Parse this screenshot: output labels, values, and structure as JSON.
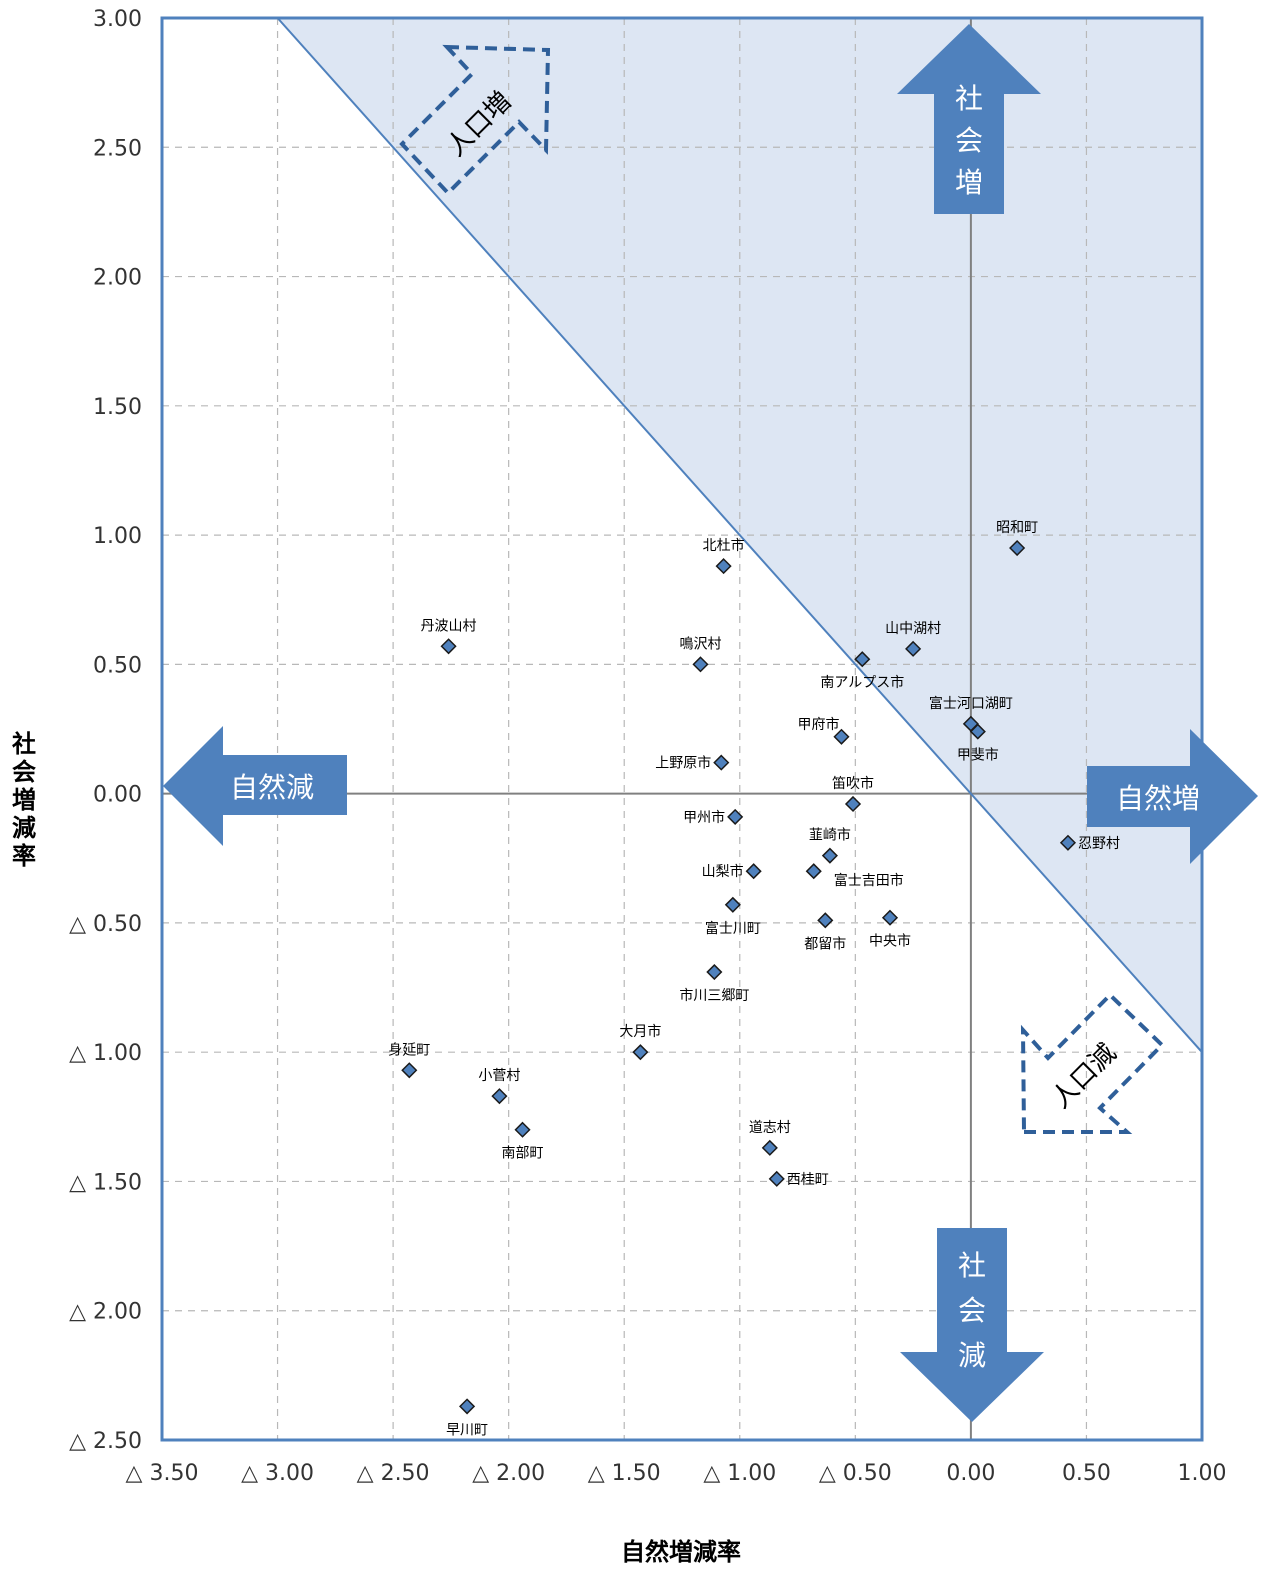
{
  "chart_data": {
    "type": "scatter",
    "xlabel": "自然増減率",
    "ylabel": "社会増減率",
    "xlim": [
      -3.5,
      1.0
    ],
    "ylim": [
      -2.5,
      3.0
    ],
    "x_ticks": [
      {
        "value": -3.5,
        "label": "△ 3.50"
      },
      {
        "value": -3.0,
        "label": "△ 3.00"
      },
      {
        "value": -2.5,
        "label": "△ 2.50"
      },
      {
        "value": -2.0,
        "label": "△ 2.00"
      },
      {
        "value": -1.5,
        "label": "△ 1.50"
      },
      {
        "value": -1.0,
        "label": "△ 1.00"
      },
      {
        "value": -0.5,
        "label": "△ 0.50"
      },
      {
        "value": 0.0,
        "label": "0.00"
      },
      {
        "value": 0.5,
        "label": "0.50"
      },
      {
        "value": 1.0,
        "label": "1.00"
      }
    ],
    "y_ticks": [
      {
        "value": 3.0,
        "label": "3.00"
      },
      {
        "value": 2.5,
        "label": "2.50"
      },
      {
        "value": 2.0,
        "label": "2.00"
      },
      {
        "value": 1.5,
        "label": "1.50"
      },
      {
        "value": 1.0,
        "label": "1.00"
      },
      {
        "value": 0.5,
        "label": "0.50"
      },
      {
        "value": 0.0,
        "label": "0.00"
      },
      {
        "value": -0.5,
        "label": "△ 0.50"
      },
      {
        "value": -1.0,
        "label": "△ 1.00"
      },
      {
        "value": -1.5,
        "label": "△ 1.50"
      },
      {
        "value": -2.0,
        "label": "△ 2.00"
      },
      {
        "value": -2.5,
        "label": "△ 2.50"
      }
    ],
    "grid": true,
    "marker_color": "#4f81bd",
    "shade_color": "#dde6f3",
    "line_color": "#4f81bd",
    "points": [
      {
        "name": "昭和町",
        "x": 0.2,
        "y": 0.95,
        "lpos": "above"
      },
      {
        "name": "北杜市",
        "x": -1.07,
        "y": 0.88,
        "lpos": "above"
      },
      {
        "name": "山中湖村",
        "x": -0.25,
        "y": 0.56,
        "lpos": "above"
      },
      {
        "name": "丹波山村",
        "x": -2.26,
        "y": 0.57,
        "lpos": "above"
      },
      {
        "name": "鳴沢村",
        "x": -1.17,
        "y": 0.5,
        "lpos": "above"
      },
      {
        "name": "南アルプス市",
        "x": -0.47,
        "y": 0.52,
        "lpos": "below"
      },
      {
        "name": "富士河口湖町",
        "x": 0.0,
        "y": 0.27,
        "lpos": "above"
      },
      {
        "name": "甲斐市",
        "x": 0.03,
        "y": 0.24,
        "lpos": "below"
      },
      {
        "name": "甲府市",
        "x": -0.56,
        "y": 0.22,
        "lpos": "above-left"
      },
      {
        "name": "上野原市",
        "x": -1.08,
        "y": 0.12,
        "lpos": "left"
      },
      {
        "name": "笛吹市",
        "x": -0.51,
        "y": -0.04,
        "lpos": "above"
      },
      {
        "name": "甲州市",
        "x": -1.02,
        "y": -0.09,
        "lpos": "left"
      },
      {
        "name": "忍野村",
        "x": 0.42,
        "y": -0.19,
        "lpos": "right"
      },
      {
        "name": "韮崎市",
        "x": -0.61,
        "y": -0.24,
        "lpos": "above"
      },
      {
        "name": "山梨市",
        "x": -0.94,
        "y": -0.3,
        "lpos": "left"
      },
      {
        "name": "富士吉田市",
        "x": -0.68,
        "y": -0.3,
        "lpos": "below-right"
      },
      {
        "name": "富士川町",
        "x": -1.03,
        "y": -0.43,
        "lpos": "below"
      },
      {
        "name": "都留市",
        "x": -0.63,
        "y": -0.49,
        "lpos": "below"
      },
      {
        "name": "中央市",
        "x": -0.35,
        "y": -0.48,
        "lpos": "below"
      },
      {
        "name": "市川三郷町",
        "x": -1.11,
        "y": -0.69,
        "lpos": "below"
      },
      {
        "name": "大月市",
        "x": -1.43,
        "y": -1.0,
        "lpos": "above"
      },
      {
        "name": "身延町",
        "x": -2.43,
        "y": -1.07,
        "lpos": "above"
      },
      {
        "name": "小菅村",
        "x": -2.04,
        "y": -1.17,
        "lpos": "above"
      },
      {
        "name": "南部町",
        "x": -1.94,
        "y": -1.3,
        "lpos": "below"
      },
      {
        "name": "道志村",
        "x": -0.87,
        "y": -1.37,
        "lpos": "above"
      },
      {
        "name": "西桂町",
        "x": -0.84,
        "y": -1.49,
        "lpos": "right"
      },
      {
        "name": "早川町",
        "x": -2.18,
        "y": -2.37,
        "lpos": "below"
      }
    ],
    "annotations": {
      "social_increase": [
        "社",
        "会",
        "増"
      ],
      "social_decrease": [
        "社",
        "会",
        "減"
      ],
      "natural_decrease": "自然減",
      "natural_increase": "自然増",
      "population_increase": "人口増",
      "population_decrease": "人口減"
    }
  }
}
